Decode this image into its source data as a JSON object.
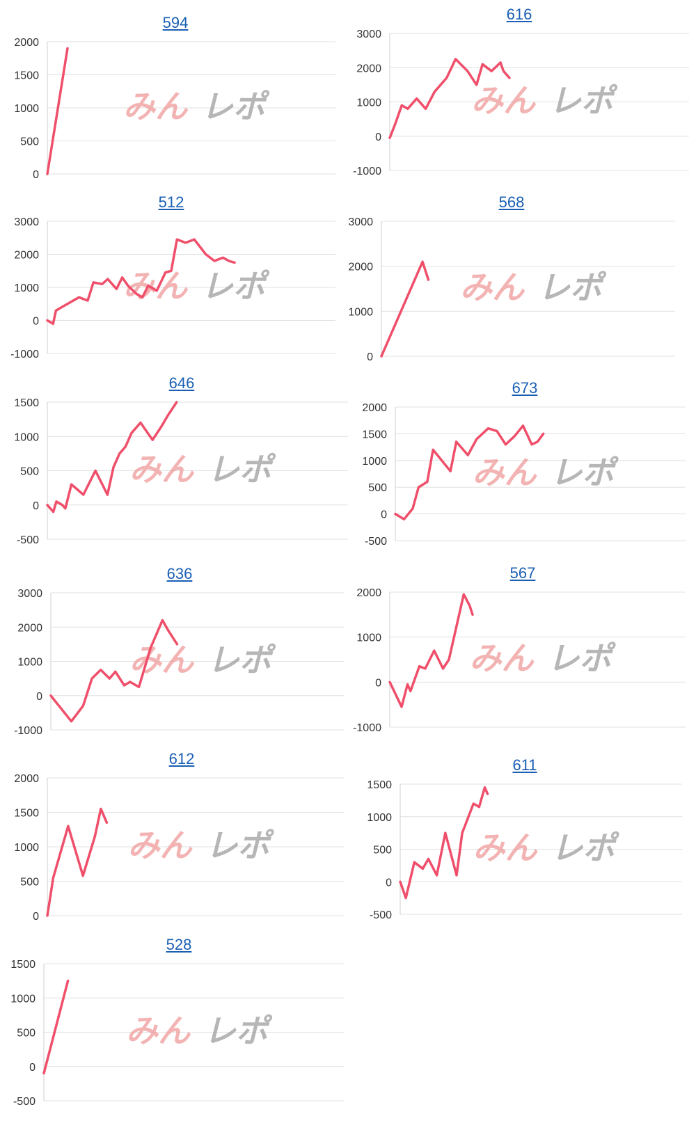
{
  "colors": {
    "line": "#ef4f6a",
    "grid": "#e0e0e0",
    "axis": "#cfcfcf",
    "title_link": "#1a5fb4",
    "watermark_red": "#ef9a9a",
    "watermark_gray": "#9e9e9e"
  },
  "watermark": {
    "part1": "みん",
    "part2": "レポ"
  },
  "chart_data": [
    {
      "type": "line",
      "title": "594",
      "ylim": [
        0,
        2000
      ],
      "yticks": [
        0,
        500,
        1000,
        1500,
        2000
      ],
      "xmax": 100,
      "series": [
        {
          "values": [
            [
              0,
              0
            ],
            [
              7,
              1900
            ]
          ]
        }
      ]
    },
    {
      "type": "line",
      "title": "616",
      "ylim": [
        -1000,
        3000
      ],
      "yticks": [
        -1000,
        0,
        1000,
        2000,
        3000
      ],
      "xmax": 100,
      "series": [
        {
          "values": [
            [
              0,
              -50
            ],
            [
              2,
              400
            ],
            [
              4,
              900
            ],
            [
              6,
              800
            ],
            [
              9,
              1100
            ],
            [
              12,
              800
            ],
            [
              15,
              1300
            ],
            [
              19,
              1700
            ],
            [
              22,
              2250
            ],
            [
              26,
              1900
            ],
            [
              29,
              1500
            ],
            [
              31,
              2100
            ],
            [
              34,
              1900
            ],
            [
              37,
              2150
            ],
            [
              38,
              1900
            ],
            [
              40,
              1700
            ]
          ]
        }
      ]
    },
    {
      "type": "line",
      "title": "512",
      "ylim": [
        -1000,
        3000
      ],
      "yticks": [
        -1000,
        0,
        1000,
        2000,
        3000
      ],
      "xmax": 100,
      "series": [
        {
          "values": [
            [
              0,
              0
            ],
            [
              2,
              -100
            ],
            [
              3,
              300
            ],
            [
              6,
              450
            ],
            [
              11,
              700
            ],
            [
              14,
              600
            ],
            [
              16,
              1150
            ],
            [
              19,
              1100
            ],
            [
              21,
              1250
            ],
            [
              24,
              950
            ],
            [
              26,
              1300
            ],
            [
              28,
              1050
            ],
            [
              31,
              800
            ],
            [
              33,
              700
            ],
            [
              35,
              1050
            ],
            [
              38,
              900
            ],
            [
              41,
              1450
            ],
            [
              43,
              1500
            ],
            [
              45,
              2450
            ],
            [
              48,
              2350
            ],
            [
              51,
              2450
            ],
            [
              55,
              2000
            ],
            [
              58,
              1800
            ],
            [
              61,
              1900
            ],
            [
              63,
              1800
            ],
            [
              65,
              1750
            ]
          ]
        }
      ]
    },
    {
      "type": "line",
      "title": "568",
      "ylim": [
        0,
        3000
      ],
      "yticks": [
        0,
        1000,
        2000,
        3000
      ],
      "xmax": 100,
      "series": [
        {
          "values": [
            [
              0,
              0
            ],
            [
              14,
              2100
            ],
            [
              16,
              1700
            ]
          ]
        }
      ]
    },
    {
      "type": "line",
      "title": "646",
      "ylim": [
        -500,
        1500
      ],
      "yticks": [
        -500,
        0,
        500,
        1000,
        1500
      ],
      "xmax": 100,
      "series": [
        {
          "values": [
            [
              0,
              0
            ],
            [
              2,
              -100
            ],
            [
              3,
              50
            ],
            [
              5,
              0
            ],
            [
              6,
              -50
            ],
            [
              8,
              300
            ],
            [
              12,
              150
            ],
            [
              16,
              500
            ],
            [
              20,
              150
            ],
            [
              22,
              550
            ],
            [
              24,
              750
            ],
            [
              26,
              850
            ],
            [
              28,
              1050
            ],
            [
              31,
              1200
            ],
            [
              35,
              950
            ],
            [
              38,
              1150
            ],
            [
              40,
              1300
            ],
            [
              43,
              1500
            ]
          ]
        }
      ]
    },
    {
      "type": "line",
      "title": "673",
      "ylim": [
        -500,
        2000
      ],
      "yticks": [
        -500,
        0,
        500,
        1000,
        1500,
        2000
      ],
      "xmax": 100,
      "series": [
        {
          "values": [
            [
              0,
              0
            ],
            [
              3,
              -100
            ],
            [
              6,
              100
            ],
            [
              8,
              500
            ],
            [
              11,
              600
            ],
            [
              13,
              1200
            ],
            [
              16,
              1000
            ],
            [
              19,
              800
            ],
            [
              21,
              1350
            ],
            [
              25,
              1100
            ],
            [
              28,
              1400
            ],
            [
              32,
              1600
            ],
            [
              35,
              1550
            ],
            [
              38,
              1300
            ],
            [
              41,
              1450
            ],
            [
              44,
              1650
            ],
            [
              47,
              1300
            ],
            [
              49,
              1350
            ],
            [
              51,
              1500
            ]
          ]
        }
      ]
    },
    {
      "type": "line",
      "title": "636",
      "ylim": [
        -1000,
        3000
      ],
      "yticks": [
        -1000,
        0,
        1000,
        2000,
        3000
      ],
      "xmax": 100,
      "series": [
        {
          "values": [
            [
              0,
              0
            ],
            [
              7,
              -750
            ],
            [
              11,
              -300
            ],
            [
              14,
              500
            ],
            [
              17,
              750
            ],
            [
              20,
              500
            ],
            [
              22,
              700
            ],
            [
              25,
              300
            ],
            [
              27,
              400
            ],
            [
              30,
              250
            ],
            [
              34,
              1400
            ],
            [
              38,
              2200
            ],
            [
              40,
              1900
            ],
            [
              43,
              1500
            ]
          ]
        }
      ]
    },
    {
      "type": "line",
      "title": "567",
      "ylim": [
        -1000,
        2000
      ],
      "yticks": [
        -1000,
        0,
        1000,
        2000
      ],
      "xmax": 100,
      "series": [
        {
          "values": [
            [
              0,
              0
            ],
            [
              4,
              -550
            ],
            [
              6,
              -50
            ],
            [
              7,
              -200
            ],
            [
              10,
              350
            ],
            [
              12,
              300
            ],
            [
              15,
              700
            ],
            [
              18,
              300
            ],
            [
              20,
              500
            ],
            [
              25,
              1950
            ],
            [
              27,
              1700
            ],
            [
              28,
              1500
            ]
          ]
        }
      ]
    },
    {
      "type": "line",
      "title": "612",
      "ylim": [
        0,
        2000
      ],
      "yticks": [
        0,
        500,
        1000,
        1500,
        2000
      ],
      "xmax": 100,
      "series": [
        {
          "values": [
            [
              0,
              0
            ],
            [
              2,
              550
            ],
            [
              7,
              1300
            ],
            [
              12,
              580
            ],
            [
              16,
              1150
            ],
            [
              18,
              1550
            ],
            [
              20,
              1350
            ]
          ]
        }
      ]
    },
    {
      "type": "line",
      "title": "611",
      "ylim": [
        -500,
        1500
      ],
      "yticks": [
        -500,
        0,
        500,
        1000,
        1500
      ],
      "xmax": 100,
      "series": [
        {
          "values": [
            [
              0,
              0
            ],
            [
              2,
              -250
            ],
            [
              5,
              300
            ],
            [
              8,
              200
            ],
            [
              10,
              350
            ],
            [
              13,
              100
            ],
            [
              16,
              750
            ],
            [
              20,
              100
            ],
            [
              22,
              750
            ],
            [
              26,
              1200
            ],
            [
              28,
              1150
            ],
            [
              30,
              1450
            ],
            [
              31,
              1350
            ]
          ]
        }
      ]
    },
    {
      "type": "line",
      "title": "528",
      "ylim": [
        -500,
        1500
      ],
      "yticks": [
        -500,
        0,
        500,
        1000,
        1500
      ],
      "xmax": 100,
      "series": [
        {
          "values": [
            [
              0,
              -100
            ],
            [
              8,
              1250
            ]
          ]
        }
      ]
    }
  ]
}
